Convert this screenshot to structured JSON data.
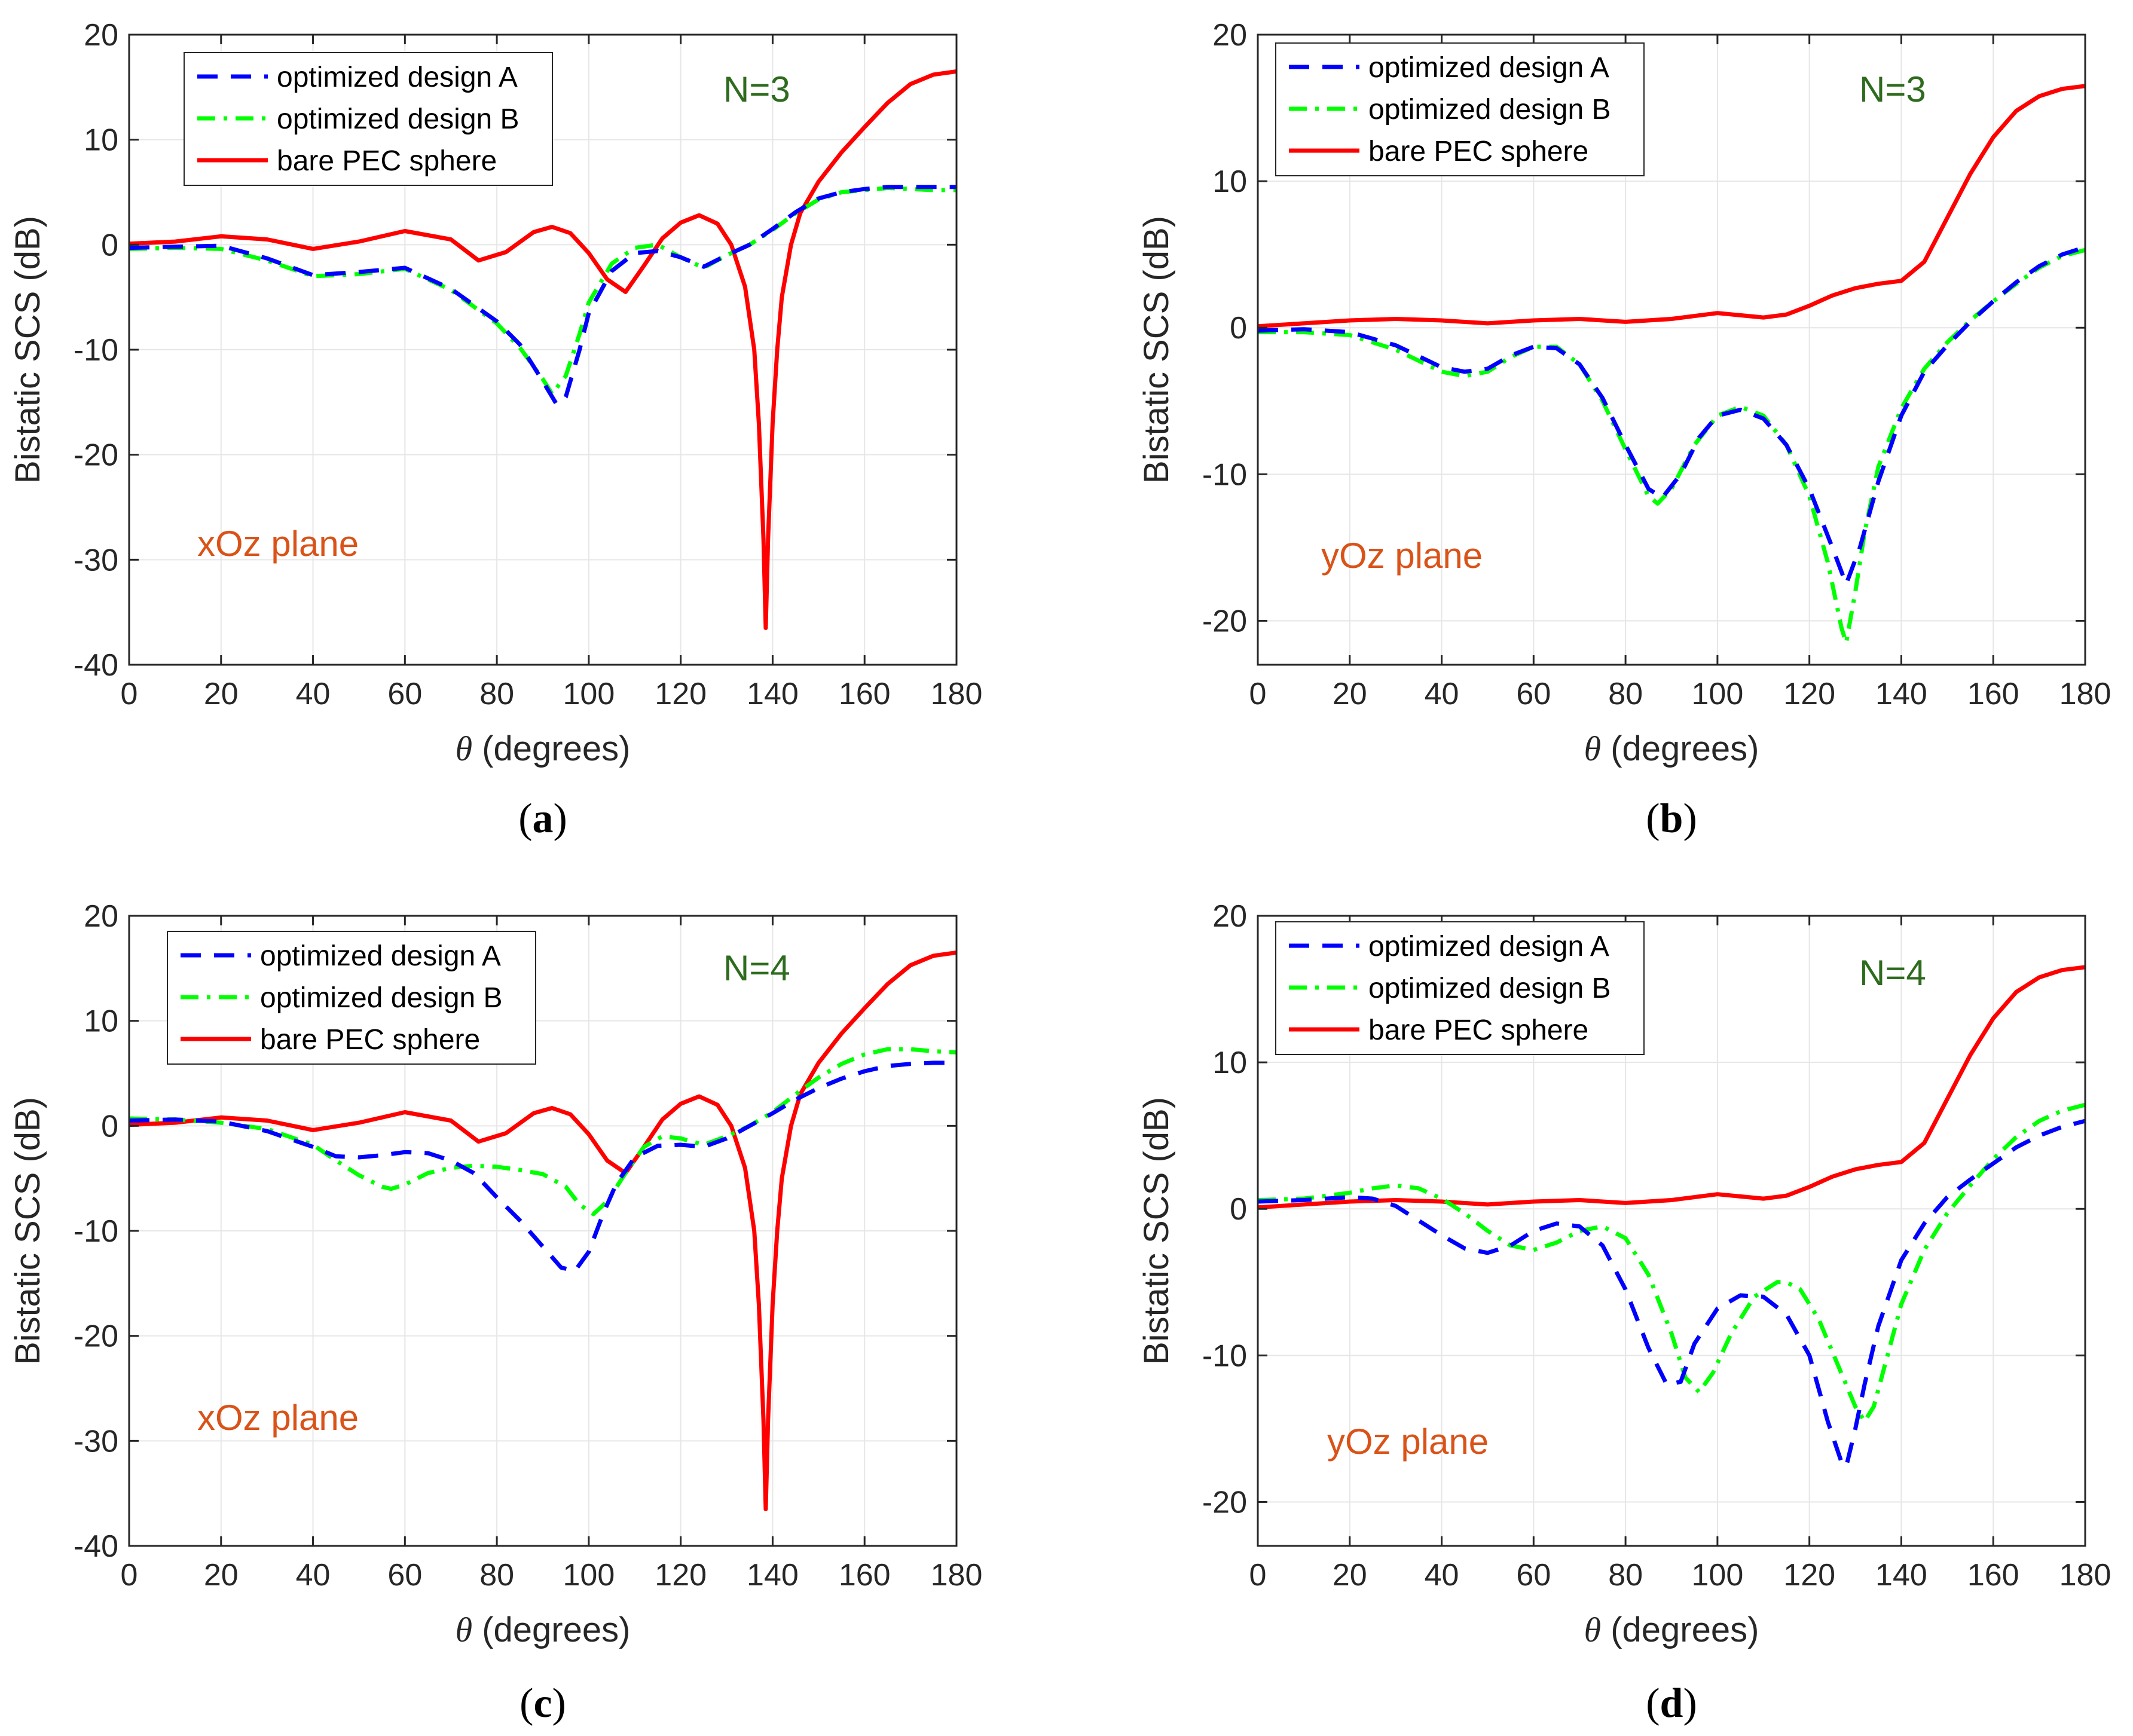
{
  "colors": {
    "design_a": "#0000ff",
    "design_b": "#00ff00",
    "pec": "#ff0000",
    "n_label": "#2e6b1e",
    "plane_label": "#d95319",
    "grid": "#e6e6e6",
    "axis": "#262626"
  },
  "chart_data": [
    {
      "type": "line",
      "caption": "(a)",
      "caption_letter": "a",
      "xlabel_symbol": "θ",
      "xlabel": " (degrees)",
      "ylabel": "Bistatic SCS (dB)",
      "xlim": [
        0,
        180
      ],
      "ylim": [
        -40,
        20
      ],
      "xticks": [
        0,
        20,
        40,
        60,
        80,
        100,
        120,
        140,
        160,
        180
      ],
      "yticks": [
        -40,
        -30,
        -20,
        -10,
        0,
        10,
        20
      ],
      "grid": true,
      "legend_placement": "top-left",
      "n_label": "N=3",
      "plane_label": "xOz plane",
      "series": [
        {
          "name": "optimized design A",
          "style": "dashed",
          "x": [
            0,
            10,
            20,
            30,
            40,
            50,
            60,
            70,
            80,
            85,
            90,
            93,
            95,
            98,
            100,
            105,
            110,
            115,
            120,
            125,
            130,
            135,
            140,
            145,
            150,
            155,
            160,
            165,
            170,
            175,
            180
          ],
          "y": [
            -0.3,
            -0.2,
            -0.1,
            -1.3,
            -2.9,
            -2.6,
            -2.2,
            -4.2,
            -7.3,
            -9.5,
            -13,
            -15.2,
            -14.5,
            -10,
            -6.5,
            -2.5,
            -0.8,
            -0.6,
            -1.2,
            -2.1,
            -1,
            0,
            1.5,
            3.1,
            4.4,
            5,
            5.3,
            5.5,
            5.5,
            5.5,
            5.5
          ]
        },
        {
          "name": "optimized design B",
          "style": "dashdot",
          "x": [
            0,
            10,
            20,
            30,
            40,
            50,
            60,
            70,
            80,
            85,
            90,
            92,
            95,
            98,
            100,
            105,
            110,
            115,
            120,
            125,
            130,
            135,
            140,
            145,
            150,
            155,
            160,
            165,
            170,
            175,
            180
          ],
          "y": [
            -0.4,
            -0.3,
            -0.4,
            -1.5,
            -3,
            -2.8,
            -2.3,
            -4.3,
            -7.5,
            -9.8,
            -12.8,
            -14.2,
            -12.5,
            -8.5,
            -5.5,
            -1.8,
            -0.3,
            0,
            -1.2,
            -2.2,
            -1,
            0,
            1.4,
            3,
            4.3,
            5,
            5.2,
            5.4,
            5.3,
            5.2,
            5.2
          ]
        },
        {
          "name": "bare PEC sphere",
          "style": "solid",
          "x": [
            0,
            10,
            20,
            30,
            40,
            50,
            60,
            70,
            76,
            82,
            88,
            92,
            96,
            100,
            104,
            108,
            112,
            116,
            120,
            124,
            128,
            131,
            134,
            136,
            137,
            138,
            138.5,
            139,
            140,
            141,
            142,
            144,
            146,
            150,
            155,
            160,
            165,
            170,
            175,
            180
          ],
          "y": [
            0.1,
            0.3,
            0.8,
            0.5,
            -0.4,
            0.3,
            1.3,
            0.5,
            -1.5,
            -0.7,
            1.2,
            1.7,
            1.1,
            -0.8,
            -3.3,
            -4.5,
            -2,
            0.6,
            2.1,
            2.8,
            2,
            0,
            -4,
            -10,
            -17,
            -28,
            -36.5,
            -28,
            -17,
            -10,
            -5,
            0,
            3,
            6,
            8.8,
            11.2,
            13.5,
            15.3,
            16.2,
            16.5
          ]
        }
      ]
    },
    {
      "type": "line",
      "caption": "(b)",
      "caption_letter": "b",
      "xlabel_symbol": "θ",
      "xlabel": " (degrees)",
      "ylabel": "Bistatic SCS (dB)",
      "xlim": [
        0,
        180
      ],
      "ylim": [
        -23,
        20
      ],
      "xticks": [
        0,
        20,
        40,
        60,
        80,
        100,
        120,
        140,
        160,
        180
      ],
      "yticks": [
        -20,
        -10,
        0,
        10,
        20
      ],
      "grid": true,
      "legend_placement": "top-left",
      "n_label": "N=3",
      "plane_label": "yOz plane",
      "series": [
        {
          "name": "optimized design A",
          "style": "dashed",
          "x": [
            0,
            10,
            20,
            30,
            40,
            45,
            50,
            55,
            60,
            65,
            70,
            75,
            80,
            85,
            88,
            92,
            96,
            100,
            105,
            110,
            115,
            120,
            125,
            128,
            131,
            135,
            140,
            145,
            150,
            155,
            160,
            165,
            170,
            175,
            180
          ],
          "y": [
            -0.2,
            -0.1,
            -0.3,
            -1.2,
            -2.7,
            -3,
            -2.8,
            -1.9,
            -1.3,
            -1.4,
            -2.5,
            -4.8,
            -8,
            -11,
            -11.6,
            -10,
            -7.5,
            -6,
            -5.6,
            -6.2,
            -8,
            -11,
            -15,
            -17.5,
            -15,
            -10.5,
            -6,
            -3,
            -1.2,
            0.4,
            1.8,
            3.1,
            4.2,
            5,
            5.5
          ]
        },
        {
          "name": "optimized design B",
          "style": "dashdot",
          "x": [
            0,
            10,
            20,
            30,
            40,
            45,
            50,
            55,
            60,
            65,
            70,
            75,
            80,
            85,
            87,
            90,
            95,
            100,
            105,
            110,
            115,
            120,
            124,
            127,
            128,
            130,
            132,
            135,
            140,
            145,
            150,
            155,
            160,
            165,
            170,
            175,
            180
          ],
          "y": [
            -0.3,
            -0.3,
            -0.5,
            -1.5,
            -3,
            -3.3,
            -3,
            -2,
            -1.3,
            -1.3,
            -2.5,
            -5,
            -8.3,
            -11.5,
            -12,
            -11,
            -8,
            -6,
            -5.4,
            -6,
            -8,
            -11.5,
            -16,
            -20.5,
            -21.5,
            -18,
            -14,
            -9.5,
            -5.5,
            -2.8,
            -1,
            0.5,
            1.8,
            3,
            4.1,
            4.9,
            5.3
          ]
        },
        {
          "name": "bare PEC sphere",
          "style": "solid",
          "x": [
            0,
            10,
            20,
            30,
            40,
            50,
            60,
            70,
            80,
            90,
            100,
            110,
            115,
            120,
            125,
            130,
            135,
            140,
            145,
            150,
            155,
            160,
            165,
            170,
            175,
            180
          ],
          "y": [
            0.1,
            0.3,
            0.5,
            0.6,
            0.5,
            0.3,
            0.5,
            0.6,
            0.4,
            0.6,
            1,
            0.7,
            0.9,
            1.5,
            2.2,
            2.7,
            3,
            3.2,
            4.5,
            7.5,
            10.5,
            13,
            14.8,
            15.8,
            16.3,
            16.5
          ]
        }
      ]
    },
    {
      "type": "line",
      "caption": "(c)",
      "caption_letter": "c",
      "xlabel_symbol": "θ",
      "xlabel": " (degrees)",
      "ylabel": "Bistatic SCS (dB)",
      "xlim": [
        0,
        180
      ],
      "ylim": [
        -40,
        20
      ],
      "xticks": [
        0,
        20,
        40,
        60,
        80,
        100,
        120,
        140,
        160,
        180
      ],
      "yticks": [
        -40,
        -30,
        -20,
        -10,
        0,
        10,
        20
      ],
      "grid": true,
      "legend_placement": "top-left",
      "n_label": "N=4",
      "plane_label": "xOz plane",
      "series": [
        {
          "name": "optimized design A",
          "style": "dashed",
          "x": [
            0,
            10,
            20,
            30,
            40,
            45,
            50,
            55,
            60,
            65,
            70,
            75,
            80,
            85,
            90,
            94,
            97,
            100,
            103,
            106,
            110,
            115,
            120,
            125,
            130,
            135,
            140,
            145,
            150,
            155,
            160,
            165,
            170,
            175,
            180
          ],
          "y": [
            0.5,
            0.6,
            0.4,
            -0.5,
            -2,
            -2.9,
            -3,
            -2.8,
            -2.5,
            -2.6,
            -3.3,
            -4.5,
            -6.8,
            -9,
            -11.5,
            -13.5,
            -13.8,
            -12,
            -8.5,
            -5.5,
            -3,
            -1.9,
            -1.8,
            -2,
            -1.2,
            0,
            1.2,
            2.5,
            3.6,
            4.5,
            5.2,
            5.7,
            5.9,
            6,
            6
          ]
        },
        {
          "name": "optimized design B",
          "style": "dashdot",
          "x": [
            0,
            10,
            20,
            30,
            40,
            45,
            50,
            55,
            57,
            60,
            65,
            70,
            75,
            80,
            85,
            90,
            95,
            98,
            101,
            104,
            108,
            112,
            116,
            120,
            125,
            130,
            135,
            140,
            145,
            150,
            155,
            160,
            165,
            170,
            175,
            180
          ],
          "y": [
            0.7,
            0.6,
            0.3,
            -0.3,
            -1.8,
            -3.3,
            -4.7,
            -5.8,
            -6,
            -5.6,
            -4.5,
            -4,
            -3.8,
            -3.9,
            -4.2,
            -4.6,
            -5.8,
            -7.5,
            -8.4,
            -7.2,
            -4.5,
            -2,
            -1,
            -1.2,
            -1.8,
            -1,
            0,
            1.3,
            3,
            4.6,
            5.9,
            6.8,
            7.3,
            7.3,
            7.1,
            7
          ]
        },
        {
          "name": "bare PEC sphere",
          "style": "solid",
          "x": [
            0,
            10,
            20,
            30,
            40,
            50,
            60,
            70,
            76,
            82,
            88,
            92,
            96,
            100,
            104,
            108,
            112,
            116,
            120,
            124,
            128,
            131,
            134,
            136,
            137,
            138,
            138.5,
            139,
            140,
            141,
            142,
            144,
            146,
            150,
            155,
            160,
            165,
            170,
            175,
            180
          ],
          "y": [
            0.1,
            0.3,
            0.8,
            0.5,
            -0.4,
            0.3,
            1.3,
            0.5,
            -1.5,
            -0.7,
            1.2,
            1.7,
            1.1,
            -0.8,
            -3.3,
            -4.5,
            -2,
            0.6,
            2.1,
            2.8,
            2,
            0,
            -4,
            -10,
            -17,
            -28,
            -36.5,
            -28,
            -17,
            -10,
            -5,
            0,
            3,
            6,
            8.8,
            11.2,
            13.5,
            15.3,
            16.2,
            16.5
          ]
        }
      ]
    },
    {
      "type": "line",
      "caption": "(d)",
      "caption_letter": "d",
      "xlabel_symbol": "θ",
      "xlabel": " (degrees)",
      "ylabel": "Bistatic SCS (dB)",
      "xlim": [
        0,
        180
      ],
      "ylim": [
        -23,
        20
      ],
      "xticks": [
        0,
        20,
        40,
        60,
        80,
        100,
        120,
        140,
        160,
        180
      ],
      "yticks": [
        -20,
        -10,
        0,
        10,
        20
      ],
      "grid": true,
      "legend_placement": "top-left",
      "n_label": "N=4",
      "plane_label": "yOz plane",
      "series": [
        {
          "name": "optimized design A",
          "style": "dashed",
          "x": [
            0,
            10,
            20,
            25,
            30,
            35,
            40,
            45,
            50,
            55,
            60,
            65,
            70,
            75,
            80,
            85,
            89,
            92,
            95,
            100,
            105,
            110,
            115,
            120,
            124,
            127,
            128,
            130,
            132,
            135,
            140,
            145,
            150,
            155,
            160,
            165,
            170,
            175,
            180
          ],
          "y": [
            0.5,
            0.6,
            0.8,
            0.7,
            0.2,
            -0.8,
            -1.8,
            -2.7,
            -3,
            -2.5,
            -1.5,
            -1,
            -1.2,
            -2.5,
            -5.5,
            -9.5,
            -12,
            -11.8,
            -9.2,
            -6.8,
            -5.9,
            -6,
            -7.2,
            -10,
            -14.5,
            -17.3,
            -17.6,
            -15,
            -12,
            -8,
            -3.5,
            -1,
            0.8,
            2,
            3.1,
            4.2,
            5,
            5.6,
            6
          ]
        },
        {
          "name": "optimized design B",
          "style": "dashdot",
          "x": [
            0,
            10,
            20,
            25,
            30,
            35,
            40,
            45,
            50,
            55,
            60,
            65,
            70,
            75,
            80,
            85,
            90,
            93,
            96,
            99,
            103,
            108,
            113,
            115,
            118,
            122,
            126,
            130,
            132,
            134,
            137,
            140,
            145,
            150,
            155,
            160,
            165,
            170,
            175,
            180
          ],
          "y": [
            0.6,
            0.7,
            1.1,
            1.4,
            1.6,
            1.4,
            0.7,
            -0.3,
            -1.5,
            -2.5,
            -2.8,
            -2.3,
            -1.5,
            -1.2,
            -2,
            -4.5,
            -8.5,
            -11.5,
            -12.5,
            -11.2,
            -8.5,
            -6,
            -5,
            -5,
            -5.5,
            -7.5,
            -10.5,
            -13.5,
            -14.5,
            -13.5,
            -10,
            -6.5,
            -2.8,
            -0.3,
            1.6,
            3.4,
            4.9,
            6,
            6.7,
            7.1
          ]
        },
        {
          "name": "bare PEC sphere",
          "style": "solid",
          "x": [
            0,
            10,
            20,
            30,
            40,
            50,
            60,
            70,
            80,
            90,
            100,
            110,
            115,
            120,
            125,
            130,
            135,
            140,
            145,
            150,
            155,
            160,
            165,
            170,
            175,
            180
          ],
          "y": [
            0.1,
            0.3,
            0.5,
            0.6,
            0.5,
            0.3,
            0.5,
            0.6,
            0.4,
            0.6,
            1,
            0.7,
            0.9,
            1.5,
            2.2,
            2.7,
            3,
            3.2,
            4.5,
            7.5,
            10.5,
            13,
            14.8,
            15.8,
            16.3,
            16.5
          ]
        }
      ]
    }
  ]
}
